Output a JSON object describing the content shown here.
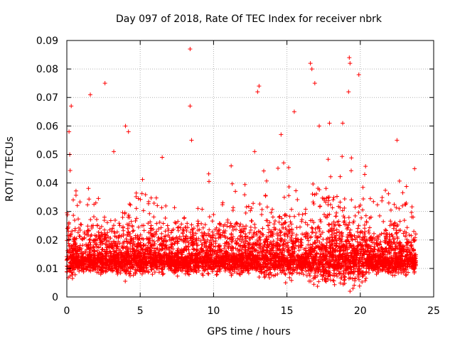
{
  "chart_data": {
    "type": "scatter",
    "title": "Day 097 of 2018, Rate Of TEC Index for receiver nbrk",
    "xlabel": "GPS time / hours",
    "ylabel": "ROTI / TECUs",
    "xlim": [
      0,
      25
    ],
    "ylim": [
      0,
      0.09
    ],
    "xticks": [
      0,
      5,
      10,
      15,
      20,
      25
    ],
    "yticks": [
      0,
      0.01,
      0.02,
      0.03,
      0.04,
      0.05,
      0.06,
      0.07,
      0.08,
      0.09
    ],
    "xtick_labels": [
      "0",
      "5",
      "10",
      "15",
      "20",
      "25"
    ],
    "ytick_labels": [
      "0",
      "0.01",
      "0.02",
      "0.03",
      "0.04",
      "0.05",
      "0.06",
      "0.07",
      "0.08",
      "0.09"
    ],
    "grid": true,
    "marker": "+",
    "color": "#ff0000",
    "series": [
      {
        "name": "ROTI",
        "x_range": [
          0,
          23.8
        ],
        "dense_band": [
          0.004,
          0.022
        ],
        "note": "dense scatter of ROTI samples",
        "highlights": [
          [
            0.3,
            0.067
          ],
          [
            0.15,
            0.058
          ],
          [
            0.2,
            0.05
          ],
          [
            1.6,
            0.071
          ],
          [
            2.6,
            0.075
          ],
          [
            3.2,
            0.051
          ],
          [
            4.0,
            0.06
          ],
          [
            4.2,
            0.058
          ],
          [
            6.5,
            0.049
          ],
          [
            8.4,
            0.087
          ],
          [
            8.4,
            0.067
          ],
          [
            8.5,
            0.055
          ],
          [
            11.2,
            0.046
          ],
          [
            12.8,
            0.051
          ],
          [
            13.0,
            0.072
          ],
          [
            13.1,
            0.074
          ],
          [
            14.6,
            0.057
          ],
          [
            15.5,
            0.065
          ],
          [
            16.6,
            0.082
          ],
          [
            16.7,
            0.08
          ],
          [
            16.9,
            0.075
          ],
          [
            17.2,
            0.06
          ],
          [
            17.9,
            0.061
          ],
          [
            18.8,
            0.061
          ],
          [
            19.2,
            0.072
          ],
          [
            19.3,
            0.082
          ],
          [
            19.25,
            0.084
          ],
          [
            19.9,
            0.078
          ],
          [
            20.3,
            0.043
          ],
          [
            22.5,
            0.055
          ],
          [
            23.7,
            0.045
          ],
          [
            19.3,
            0.002
          ],
          [
            19.5,
            0.003
          ]
        ]
      }
    ]
  }
}
